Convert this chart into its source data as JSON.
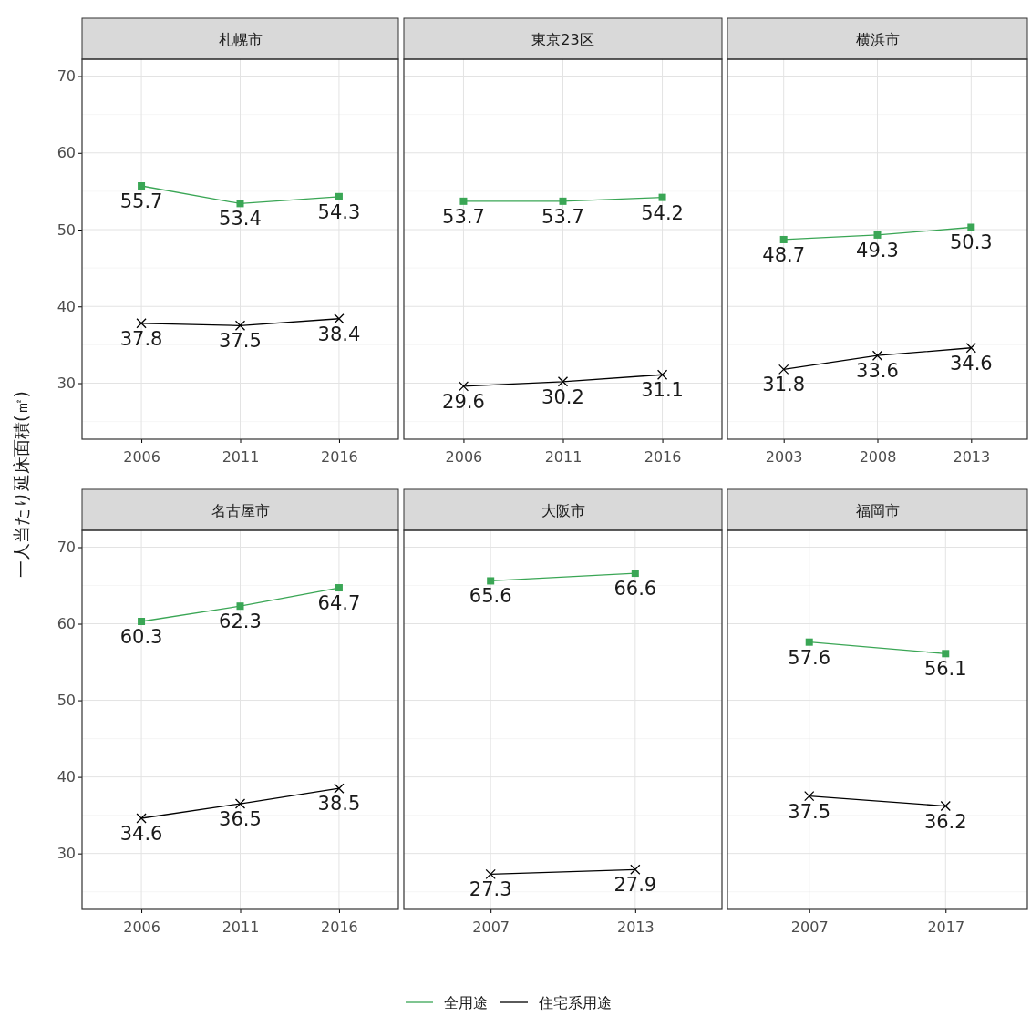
{
  "chart_data": [
    {
      "type": "line",
      "title": "札幌市",
      "ylabel": "一人当たり延床面積(㎡)",
      "categories": [
        "2006",
        "2011",
        "2016"
      ],
      "series": [
        {
          "color": "#3aa655",
          "marker": "square",
          "values": [
            55.7,
            53.4,
            54.3
          ]
        },
        {
          "color": "#000000",
          "marker": "cross",
          "values": [
            37.8,
            37.5,
            38.4
          ]
        }
      ],
      "ylim": [
        22.7,
        72.2
      ],
      "yticks": [
        30,
        40,
        50,
        60,
        70
      ],
      "grid": true,
      "data_labels": true
    },
    {
      "type": "line",
      "title": "東京23区",
      "categories": [
        "2006",
        "2011",
        "2016"
      ],
      "series": [
        {
          "color": "#3aa655",
          "marker": "square",
          "values": [
            53.7,
            53.7,
            54.2
          ]
        },
        {
          "color": "#000000",
          "marker": "cross",
          "values": [
            29.6,
            30.2,
            31.1
          ]
        }
      ],
      "ylim": [
        22.7,
        72.2
      ],
      "yticks": [
        30,
        40,
        50,
        60,
        70
      ],
      "tick_labels": "x",
      "grid": true,
      "data_labels": true
    },
    {
      "type": "line",
      "title": "横浜市",
      "categories": [
        "2003",
        "2008",
        "2013"
      ],
      "series": [
        {
          "color": "#3aa655",
          "marker": "square",
          "values": [
            48.7,
            49.3,
            50.3
          ]
        },
        {
          "color": "#000000",
          "marker": "cross",
          "values": [
            31.8,
            33.6,
            34.6
          ]
        }
      ],
      "ylim": [
        22.7,
        72.2
      ],
      "yticks": [
        30,
        40,
        50,
        60,
        70
      ],
      "tick_labels": "x",
      "grid": true,
      "data_labels": true
    },
    {
      "type": "line",
      "title": "名古屋市",
      "categories": [
        "2006",
        "2011",
        "2016"
      ],
      "series": [
        {
          "color": "#3aa655",
          "marker": "square",
          "values": [
            60.3,
            62.3,
            64.7
          ]
        },
        {
          "color": "#000000",
          "marker": "cross",
          "values": [
            34.6,
            36.5,
            38.5
          ]
        }
      ],
      "ylim": [
        22.7,
        72.2
      ],
      "yticks": [
        30,
        40,
        50,
        60,
        70
      ],
      "grid": true,
      "data_labels": true
    },
    {
      "type": "line",
      "title": "大阪市",
      "categories": [
        "2007",
        "2013"
      ],
      "series": [
        {
          "color": "#3aa655",
          "marker": "square",
          "values": [
            65.6,
            66.6
          ]
        },
        {
          "color": "#000000",
          "marker": "cross",
          "values": [
            27.3,
            27.9
          ]
        }
      ],
      "ylim": [
        22.7,
        72.2
      ],
      "yticks": [
        30,
        40,
        50,
        60,
        70
      ],
      "tick_labels": "x",
      "grid": true,
      "data_labels": true
    },
    {
      "type": "line",
      "title": "福岡市",
      "categories": [
        "2007",
        "2017"
      ],
      "series": [
        {
          "name": "全用途",
          "color": "#3aa655",
          "marker": "square",
          "values": [
            57.6,
            56.1
          ]
        },
        {
          "name": "住宅系用途",
          "color": "#000000",
          "marker": "cross",
          "values": [
            37.5,
            36.2
          ]
        }
      ],
      "ylim": [
        22.7,
        72.2
      ],
      "yticks": [
        30,
        40,
        50,
        60,
        70
      ],
      "tick_labels": "x",
      "grid": true,
      "data_labels": true,
      "legend": "bottom"
    }
  ]
}
